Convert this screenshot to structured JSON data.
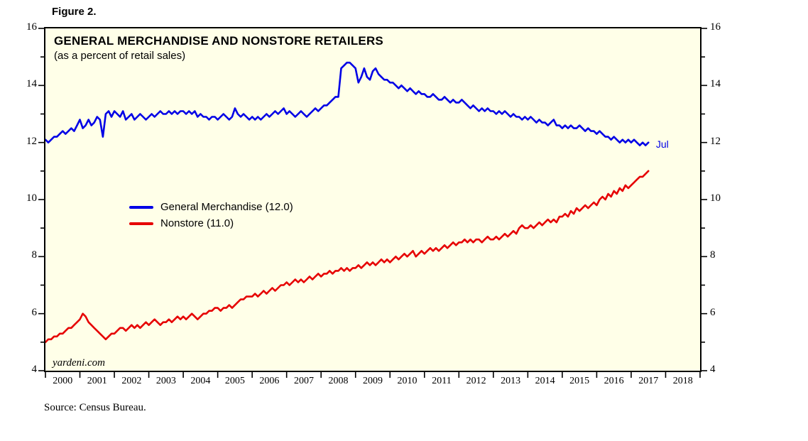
{
  "figure_label": "Figure 2.",
  "source_note": "Source: Census Bureau.",
  "watermark": "yardeni.com",
  "chart_data": {
    "type": "line",
    "title": "GENERAL MERCHANDISE AND NONSTORE RETAILERS",
    "subtitle": "(as a percent of retail sales)",
    "plot_bg": "#FFFFE8",
    "grid": false,
    "legend_position": "inside-left",
    "xlim": [
      2000,
      2019
    ],
    "ylim": [
      4,
      16
    ],
    "y_major_ticks": [
      4,
      6,
      8,
      10,
      12,
      14,
      16
    ],
    "y_minor_ticks": [
      5,
      7,
      9,
      11,
      13,
      15
    ],
    "x_year_ticks": [
      2000,
      2001,
      2002,
      2003,
      2004,
      2005,
      2006,
      2007,
      2008,
      2009,
      2010,
      2011,
      2012,
      2013,
      2014,
      2015,
      2016,
      2017,
      2018,
      2019
    ],
    "x_year_labels": [
      "2000",
      "2001",
      "2002",
      "2003",
      "2004",
      "2005",
      "2006",
      "2007",
      "2008",
      "2009",
      "2010",
      "2011",
      "2012",
      "2013",
      "2014",
      "2015",
      "2016",
      "2017",
      "2018"
    ],
    "x_start": 2000,
    "freq": "monthly",
    "annotation": {
      "text": "Jul",
      "x": 2017.72,
      "y": 11.95,
      "color": "#0000E6"
    },
    "series": [
      {
        "name": "General Merchandise (12.0)",
        "color": "#0000E6",
        "last_value": 12.0,
        "values": [
          12.1,
          12.0,
          12.1,
          12.2,
          12.2,
          12.3,
          12.4,
          12.3,
          12.4,
          12.5,
          12.4,
          12.6,
          12.8,
          12.5,
          12.6,
          12.8,
          12.6,
          12.7,
          12.9,
          12.8,
          12.2,
          13.0,
          13.1,
          12.9,
          13.1,
          13.0,
          12.9,
          13.1,
          12.8,
          12.9,
          13.0,
          12.8,
          12.9,
          13.0,
          12.9,
          12.8,
          12.9,
          13.0,
          12.9,
          13.0,
          13.1,
          13.0,
          13.0,
          13.1,
          13.0,
          13.1,
          13.0,
          13.1,
          13.1,
          13.0,
          13.1,
          13.0,
          13.1,
          12.9,
          13.0,
          12.9,
          12.9,
          12.8,
          12.9,
          12.9,
          12.8,
          12.9,
          13.0,
          12.9,
          12.8,
          12.9,
          13.2,
          13.0,
          12.9,
          13.0,
          12.9,
          12.8,
          12.9,
          12.8,
          12.9,
          12.8,
          12.9,
          13.0,
          12.9,
          13.0,
          13.1,
          13.0,
          13.1,
          13.2,
          13.0,
          13.1,
          13.0,
          12.9,
          13.0,
          13.1,
          13.0,
          12.9,
          13.0,
          13.1,
          13.2,
          13.1,
          13.2,
          13.3,
          13.3,
          13.4,
          13.5,
          13.6,
          13.6,
          14.6,
          14.7,
          14.8,
          14.8,
          14.7,
          14.6,
          14.1,
          14.3,
          14.6,
          14.3,
          14.2,
          14.5,
          14.6,
          14.4,
          14.3,
          14.2,
          14.2,
          14.1,
          14.1,
          14.0,
          13.9,
          14.0,
          13.9,
          13.8,
          13.9,
          13.8,
          13.7,
          13.8,
          13.7,
          13.7,
          13.6,
          13.6,
          13.7,
          13.6,
          13.5,
          13.5,
          13.6,
          13.5,
          13.4,
          13.5,
          13.4,
          13.4,
          13.5,
          13.4,
          13.3,
          13.2,
          13.3,
          13.2,
          13.1,
          13.2,
          13.1,
          13.2,
          13.1,
          13.1,
          13.0,
          13.1,
          13.0,
          13.1,
          13.0,
          12.9,
          13.0,
          12.9,
          12.9,
          12.8,
          12.9,
          12.8,
          12.9,
          12.8,
          12.7,
          12.8,
          12.7,
          12.7,
          12.6,
          12.7,
          12.8,
          12.6,
          12.6,
          12.5,
          12.6,
          12.5,
          12.6,
          12.5,
          12.5,
          12.6,
          12.5,
          12.4,
          12.5,
          12.4,
          12.4,
          12.3,
          12.4,
          12.3,
          12.2,
          12.2,
          12.1,
          12.2,
          12.1,
          12.0,
          12.1,
          12.0,
          12.1,
          12.0,
          12.1,
          12.0,
          11.9,
          12.0,
          11.9,
          12.0
        ]
      },
      {
        "name": "Nonstore (11.0)",
        "color": "#E60000",
        "last_value": 11.0,
        "values": [
          5.0,
          5.1,
          5.1,
          5.2,
          5.2,
          5.3,
          5.3,
          5.4,
          5.5,
          5.5,
          5.6,
          5.7,
          5.8,
          6.0,
          5.9,
          5.7,
          5.6,
          5.5,
          5.4,
          5.3,
          5.2,
          5.1,
          5.2,
          5.3,
          5.3,
          5.4,
          5.5,
          5.5,
          5.4,
          5.5,
          5.6,
          5.5,
          5.6,
          5.5,
          5.6,
          5.7,
          5.6,
          5.7,
          5.8,
          5.7,
          5.6,
          5.7,
          5.7,
          5.8,
          5.7,
          5.8,
          5.9,
          5.8,
          5.9,
          5.8,
          5.9,
          6.0,
          5.9,
          5.8,
          5.9,
          6.0,
          6.0,
          6.1,
          6.1,
          6.2,
          6.2,
          6.1,
          6.2,
          6.2,
          6.3,
          6.2,
          6.3,
          6.4,
          6.5,
          6.5,
          6.6,
          6.6,
          6.6,
          6.7,
          6.6,
          6.7,
          6.8,
          6.7,
          6.8,
          6.9,
          6.8,
          6.9,
          7.0,
          7.0,
          7.1,
          7.0,
          7.1,
          7.2,
          7.1,
          7.2,
          7.1,
          7.2,
          7.3,
          7.2,
          7.3,
          7.4,
          7.3,
          7.4,
          7.4,
          7.5,
          7.4,
          7.5,
          7.5,
          7.6,
          7.5,
          7.6,
          7.5,
          7.6,
          7.6,
          7.7,
          7.6,
          7.7,
          7.8,
          7.7,
          7.8,
          7.7,
          7.8,
          7.9,
          7.8,
          7.9,
          7.8,
          7.9,
          8.0,
          7.9,
          8.0,
          8.1,
          8.0,
          8.1,
          8.2,
          8.0,
          8.1,
          8.2,
          8.1,
          8.2,
          8.3,
          8.2,
          8.3,
          8.2,
          8.3,
          8.4,
          8.3,
          8.4,
          8.5,
          8.4,
          8.5,
          8.5,
          8.6,
          8.5,
          8.6,
          8.5,
          8.6,
          8.6,
          8.5,
          8.6,
          8.7,
          8.6,
          8.6,
          8.7,
          8.6,
          8.7,
          8.8,
          8.7,
          8.8,
          8.9,
          8.8,
          9.0,
          9.1,
          9.0,
          9.0,
          9.1,
          9.0,
          9.1,
          9.2,
          9.1,
          9.2,
          9.3,
          9.2,
          9.3,
          9.2,
          9.4,
          9.4,
          9.5,
          9.4,
          9.6,
          9.5,
          9.7,
          9.6,
          9.7,
          9.8,
          9.7,
          9.8,
          9.9,
          9.8,
          10.0,
          10.1,
          10.0,
          10.2,
          10.1,
          10.3,
          10.2,
          10.4,
          10.3,
          10.5,
          10.4,
          10.5,
          10.6,
          10.7,
          10.8,
          10.8,
          10.9,
          11.0
        ]
      }
    ]
  }
}
